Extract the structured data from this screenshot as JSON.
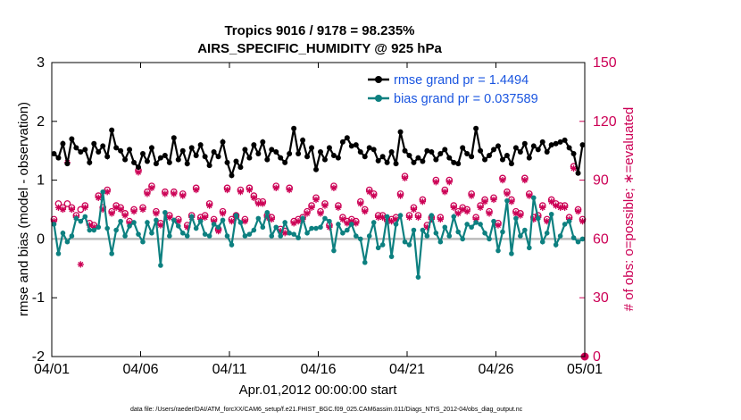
{
  "chart_data": {
    "type": "line",
    "title": "Tropics 9016 / 9178 = 98.235%",
    "subtitle": "AIRS_SPECIFIC_HUMIDITY @ 925 hPa",
    "xlabel": "Apr.01,2012 00:00:00 start",
    "ylabel_left": "rmse and bias (model - observation)",
    "ylabel_right": "# of obs: o=possible; ∗=evaluated",
    "footer": "data file: /Users/raeder/DAI/ATM_forcXX/CAM6_setup/f.e21.FHIST_BGC.f09_025.CAM6assim.011/Diags_NTrS_2012-04/obs_diag_output.nc",
    "xlim": [
      0,
      30
    ],
    "ylim_left": [
      -2,
      3
    ],
    "ylim_right": [
      0,
      150
    ],
    "x_ticks": [
      0,
      5,
      10,
      15,
      20,
      25,
      30
    ],
    "x_tick_labels": [
      "04/01",
      "04/06",
      "04/11",
      "04/16",
      "04/21",
      "04/26",
      "05/01"
    ],
    "yticks_left": [
      "-2",
      "-1",
      "0",
      "1",
      "2",
      "3"
    ],
    "yticks_right": [
      "0",
      "30",
      "60",
      "90",
      "120",
      "150"
    ],
    "colors": {
      "rmse": "#000000",
      "bias": "#0d8080",
      "obs": "#cc0055",
      "right_axis": "#cc0055",
      "legend_text": "#1a55e0",
      "zero_line": "#bbbbbb"
    },
    "legend": [
      {
        "series": "rmse",
        "label": "rmse grand pr = 1.4494"
      },
      {
        "series": "bias",
        "label": "bias grand pr = 0.037589"
      }
    ],
    "rmse": [
      1.45,
      1.38,
      1.62,
      1.28,
      1.7,
      1.55,
      1.48,
      1.52,
      1.3,
      1.62,
      1.48,
      1.58,
      1.4,
      1.85,
      1.55,
      1.5,
      1.35,
      1.52,
      1.3,
      1.22,
      1.45,
      1.32,
      1.55,
      1.28,
      1.38,
      1.42,
      1.3,
      1.72,
      1.35,
      1.5,
      1.28,
      1.55,
      1.42,
      1.6,
      1.4,
      1.25,
      1.48,
      1.4,
      1.65,
      1.3,
      1.08,
      1.32,
      1.22,
      1.52,
      1.38,
      1.6,
      1.45,
      1.65,
      1.35,
      1.52,
      1.48,
      1.38,
      1.3,
      1.45,
      1.88,
      1.45,
      1.68,
      1.4,
      1.55,
      1.18,
      1.48,
      1.35,
      1.55,
      1.42,
      1.38,
      1.65,
      1.72,
      1.58,
      1.6,
      1.48,
      1.4,
      1.55,
      1.52,
      1.33,
      1.4,
      1.3,
      1.48,
      1.28,
      1.82,
      1.5,
      1.42,
      1.3,
      1.38,
      1.32,
      1.5,
      1.48,
      1.35,
      1.45,
      1.52,
      1.38,
      1.3,
      1.28,
      1.55,
      1.45,
      1.4,
      1.88,
      1.5,
      1.35,
      1.42,
      1.52,
      1.58,
      1.35,
      1.42,
      1.28,
      1.55,
      1.48,
      1.62,
      1.38,
      1.58,
      1.52,
      1.65,
      1.48,
      1.6,
      1.62,
      1.65,
      1.68,
      1.55,
      1.45,
      1.12,
      1.6
    ],
    "bias": [
      0.25,
      -0.25,
      0.1,
      -0.05,
      0.05,
      0.35,
      0.3,
      0.38,
      0.15,
      0.15,
      0.2,
      0.8,
      0.18,
      -0.25,
      0.15,
      0.3,
      0.05,
      0.22,
      0.28,
      0.08,
      -0.05,
      0.28,
      0.1,
      0.32,
      -0.45,
      0.45,
      0.05,
      0.32,
      0.22,
      0.1,
      0.05,
      0.38,
      0.18,
      0.3,
      0.08,
      0.05,
      0.25,
      0.2,
      0.32,
      0.05,
      -0.1,
      0.4,
      0.28,
      0.05,
      0.08,
      0.15,
      0.35,
      0.2,
      0.45,
      0.05,
      0.2,
      0.05,
      0.28,
      0.1,
      0.08,
      0.02,
      0.35,
      0.1,
      0.18,
      0.18,
      0.2,
      0.35,
      0.3,
      -0.2,
      0.25,
      0.1,
      0.15,
      0.25,
      0.05,
      0.0,
      -0.4,
      0.05,
      0.28,
      -0.15,
      -0.1,
      0.38,
      -0.3,
      0.25,
      0.4,
      -0.05,
      -0.1,
      0.15,
      -0.65,
      0.15,
      0.05,
      0.4,
      0.1,
      -0.05,
      0.2,
      0.05,
      0.38,
      0.12,
      0.0,
      0.25,
      0.2,
      0.28,
      0.25,
      0.1,
      0.0,
      0.3,
      -0.2,
      0.12,
      0.65,
      -0.25,
      0.35,
      0.05,
      0.15,
      -0.15,
      0.7,
      0.35,
      -0.05,
      0.1,
      0.42,
      -0.1,
      0.05,
      0.25,
      0.3,
      0.02,
      -0.05,
      0.0
    ],
    "obs_possible": [
      70,
      78,
      76,
      78,
      76,
      72,
      75,
      77,
      68,
      67,
      82,
      76,
      85,
      74,
      77,
      76,
      73,
      69,
      75,
      95,
      76,
      84,
      87,
      74,
      68,
      84,
      72,
      84,
      70,
      83,
      67,
      72,
      86,
      71,
      72,
      78,
      70,
      65,
      74,
      86,
      70,
      72,
      85,
      70,
      86,
      82,
      79,
      79,
      72,
      71,
      87,
      65,
      64,
      86,
      69,
      70,
      71,
      74,
      77,
      81,
      74,
      78,
      67,
      87,
      77,
      71,
      69,
      70,
      69,
      79,
      75,
      85,
      83,
      72,
      72,
      70,
      70,
      71,
      83,
      92,
      72,
      76,
      72,
      80,
      67,
      71,
      90,
      71,
      85,
      90,
      77,
      74,
      76,
      75,
      83,
      71,
      77,
      80,
      74,
      81,
      68,
      91,
      84,
      80,
      74,
      73,
      91,
      83,
      71,
      72,
      77,
      70,
      80,
      78,
      77,
      77,
      71,
      97,
      75,
      70
    ],
    "obs_evaluated": [
      69,
      76,
      75,
      99,
      75,
      71,
      47,
      76,
      67,
      66,
      81,
      75,
      84,
      73,
      76,
      75,
      72,
      68,
      74,
      94,
      75,
      83,
      86,
      73,
      67,
      83,
      71,
      83,
      69,
      82,
      66,
      71,
      85,
      70,
      71,
      77,
      69,
      64,
      73,
      85,
      69,
      71,
      84,
      69,
      85,
      81,
      78,
      78,
      71,
      70,
      86,
      64,
      63,
      85,
      68,
      69,
      70,
      73,
      76,
      80,
      73,
      77,
      66,
      86,
      76,
      70,
      68,
      69,
      68,
      78,
      74,
      84,
      82,
      71,
      71,
      69,
      69,
      70,
      82,
      91,
      71,
      75,
      71,
      79,
      66,
      70,
      89,
      70,
      84,
      89,
      76,
      73,
      75,
      74,
      82,
      70,
      76,
      79,
      73,
      80,
      67,
      90,
      83,
      79,
      73,
      72,
      90,
      82,
      70,
      71,
      76,
      69,
      79,
      77,
      76,
      76,
      70,
      96,
      74,
      69
    ],
    "last_point_obs": 0
  }
}
